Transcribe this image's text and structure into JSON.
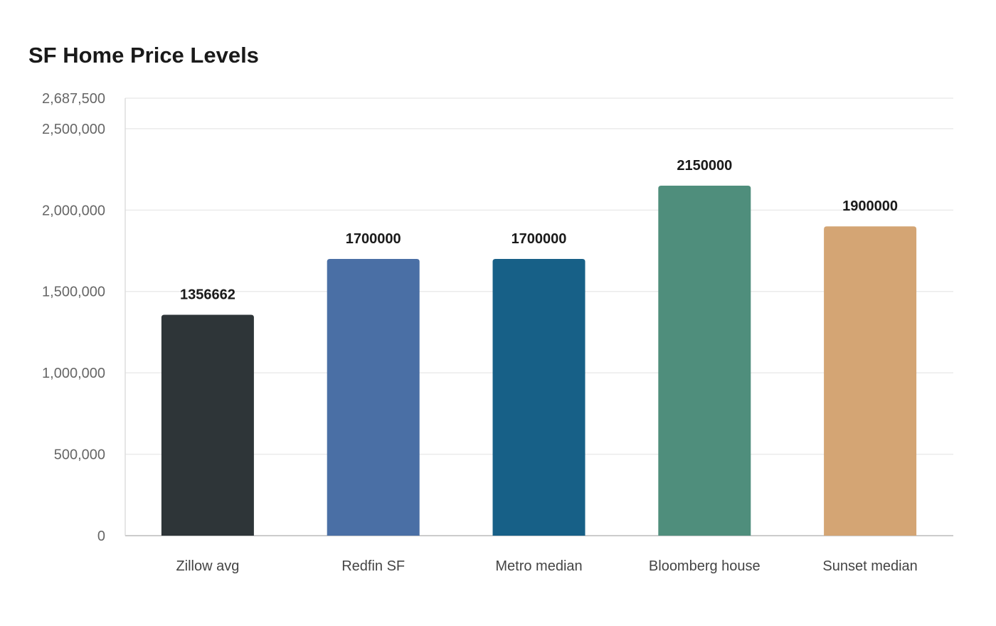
{
  "chart_data": {
    "type": "bar",
    "title": "SF Home Price Levels",
    "xlabel": "",
    "ylabel": "",
    "categories": [
      "Zillow avg",
      "Redfin SF",
      "Metro median",
      "Bloomberg house",
      "Sunset median"
    ],
    "values": [
      1356662,
      1700000,
      1700000,
      2150000,
      1900000
    ],
    "data_labels": [
      "1356662",
      "1700000",
      "1700000",
      "2150000",
      "1900000"
    ],
    "colors": [
      "#2e3538",
      "#4a6fa5",
      "#176087",
      "#4f8e7c",
      "#d4a574"
    ],
    "ylim": [
      0,
      2687500
    ],
    "yticks": [
      0,
      500000,
      1000000,
      1500000,
      2000000,
      2500000,
      2687500
    ],
    "ytick_labels": [
      "0",
      "500,000",
      "1,000,000",
      "1,500,000",
      "2,000,000",
      "2,500,000",
      "2,687,500"
    ],
    "grid": true,
    "legend": "none"
  }
}
